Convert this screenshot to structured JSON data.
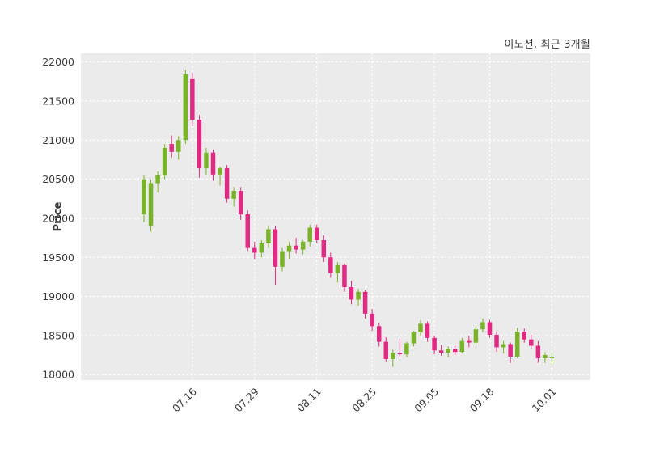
{
  "chart_data": {
    "type": "candlestick",
    "title": "이노션, 최근 3개월",
    "ylabel": "Price",
    "xlabel": "",
    "y_ticks": [
      18000,
      18500,
      19000,
      19500,
      20000,
      20500,
      21000,
      21500,
      22000
    ],
    "ylim": [
      17930,
      22110
    ],
    "x_ticks": [
      {
        "index": 7,
        "label": "07.16"
      },
      {
        "index": 16,
        "label": "07.29"
      },
      {
        "index": 25,
        "label": "08.11"
      },
      {
        "index": 33,
        "label": "08.25"
      },
      {
        "index": 42,
        "label": "09.05"
      },
      {
        "index": 50,
        "label": "09.18"
      },
      {
        "index": 59,
        "label": "10.01"
      }
    ],
    "grid": {
      "horizontal": true,
      "vertical": true,
      "style": "dashed",
      "color": "#ffffff"
    },
    "colors": {
      "up": "#7ab32a",
      "down": "#e02a84",
      "plot_bg": "#ebebeb",
      "grid": "#ffffff",
      "text": "#3a3a3a"
    },
    "ohlc_format": [
      "open",
      "high",
      "low",
      "close"
    ],
    "candles": [
      [
        20050,
        20550,
        19950,
        20500
      ],
      [
        19900,
        20500,
        19830,
        20450
      ],
      [
        20450,
        20600,
        20330,
        20550
      ],
      [
        20550,
        20950,
        20500,
        20900
      ],
      [
        20950,
        21060,
        20780,
        20850
      ],
      [
        20850,
        21050,
        20750,
        21000
      ],
      [
        21000,
        21900,
        20950,
        21840
      ],
      [
        21780,
        21860,
        21180,
        21260
      ],
      [
        21260,
        21320,
        20520,
        20640
      ],
      [
        20640,
        20900,
        20560,
        20840
      ],
      [
        20840,
        20880,
        20480,
        20560
      ],
      [
        20560,
        20660,
        20420,
        20640
      ],
      [
        20640,
        20680,
        20200,
        20250
      ],
      [
        20250,
        20400,
        20150,
        20350
      ],
      [
        20350,
        20400,
        19980,
        20050
      ],
      [
        20050,
        20100,
        19580,
        19620
      ],
      [
        19620,
        19700,
        19480,
        19560
      ],
      [
        19560,
        19720,
        19500,
        19680
      ],
      [
        19680,
        19900,
        19620,
        19860
      ],
      [
        19860,
        19900,
        19150,
        19380
      ],
      [
        19380,
        19620,
        19320,
        19580
      ],
      [
        19580,
        19700,
        19480,
        19650
      ],
      [
        19650,
        19750,
        19550,
        19600
      ],
      [
        19600,
        19720,
        19540,
        19700
      ],
      [
        19700,
        19920,
        19640,
        19880
      ],
      [
        19880,
        19920,
        19680,
        19720
      ],
      [
        19720,
        19780,
        19440,
        19500
      ],
      [
        19500,
        19560,
        19240,
        19300
      ],
      [
        19300,
        19440,
        19180,
        19400
      ],
      [
        19400,
        19420,
        19060,
        19120
      ],
      [
        19120,
        19200,
        18900,
        18960
      ],
      [
        18960,
        19100,
        18880,
        19060
      ],
      [
        19060,
        19080,
        18720,
        18780
      ],
      [
        18780,
        18840,
        18560,
        18620
      ],
      [
        18620,
        18660,
        18360,
        18420
      ],
      [
        18420,
        18480,
        18160,
        18200
      ],
      [
        18200,
        18320,
        18100,
        18280
      ],
      [
        18280,
        18460,
        18220,
        18260
      ],
      [
        18260,
        18420,
        18220,
        18400
      ],
      [
        18400,
        18560,
        18360,
        18540
      ],
      [
        18540,
        18700,
        18500,
        18650
      ],
      [
        18650,
        18680,
        18420,
        18470
      ],
      [
        18470,
        18500,
        18260,
        18310
      ],
      [
        18310,
        18380,
        18240,
        18280
      ],
      [
        18280,
        18360,
        18220,
        18330
      ],
      [
        18330,
        18370,
        18250,
        18290
      ],
      [
        18290,
        18470,
        18270,
        18430
      ],
      [
        18430,
        18500,
        18350,
        18410
      ],
      [
        18410,
        18620,
        18390,
        18580
      ],
      [
        18580,
        18720,
        18540,
        18670
      ],
      [
        18670,
        18700,
        18470,
        18510
      ],
      [
        18510,
        18550,
        18290,
        18350
      ],
      [
        18350,
        18430,
        18270,
        18390
      ],
      [
        18390,
        18410,
        18150,
        18230
      ],
      [
        18230,
        18600,
        18210,
        18550
      ],
      [
        18550,
        18590,
        18410,
        18450
      ],
      [
        18450,
        18510,
        18330,
        18370
      ],
      [
        18370,
        18430,
        18150,
        18210
      ],
      [
        18210,
        18290,
        18150,
        18250
      ],
      [
        18210,
        18280,
        18130,
        18230
      ]
    ]
  }
}
